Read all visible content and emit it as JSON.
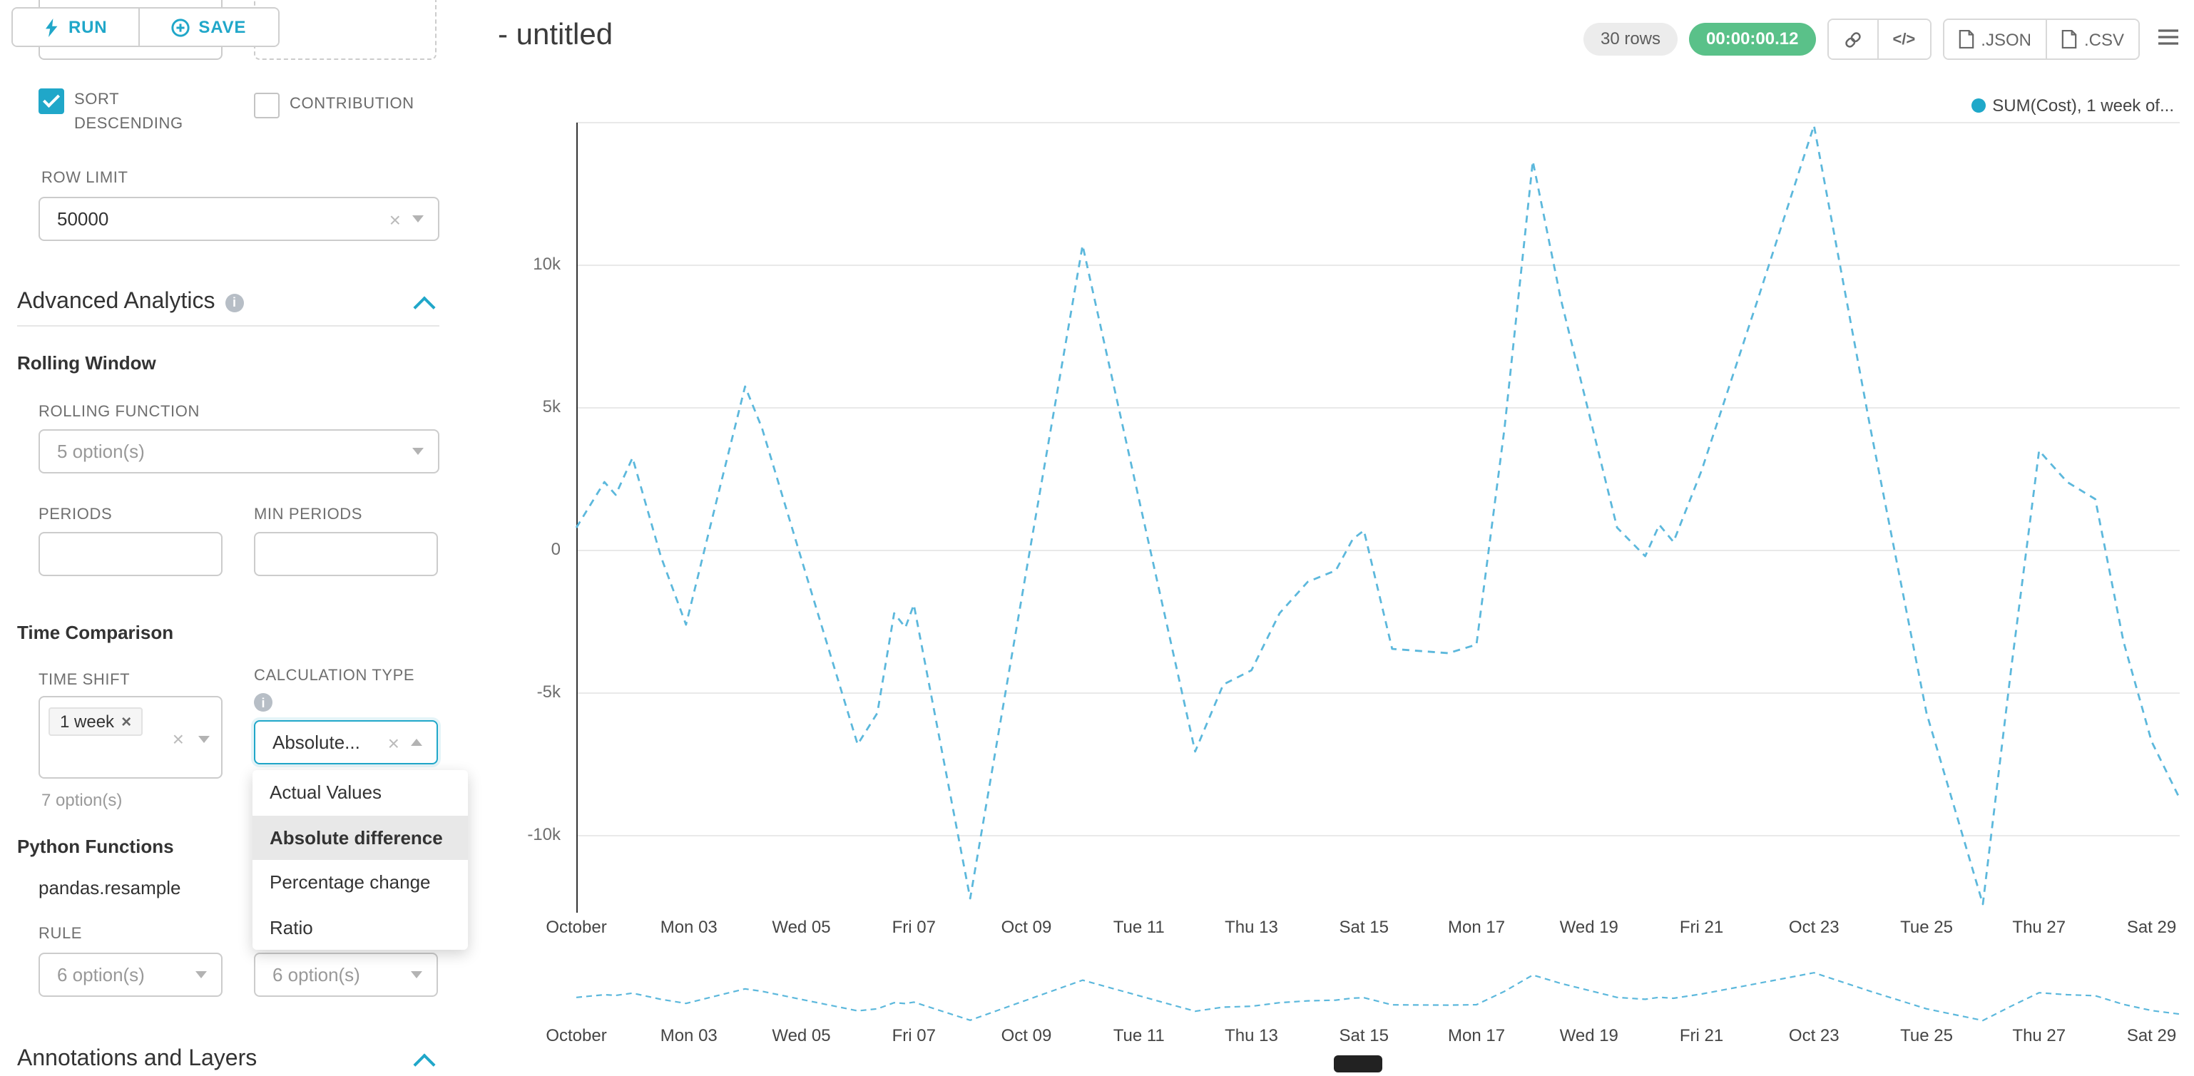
{
  "colors": {
    "accent": "#20a7c9",
    "success_badge": "#5ac189",
    "line": "#5cb8dc",
    "legend_dot": "#1fa8c9"
  },
  "toolbar": {
    "run": "RUN",
    "save": "SAVE"
  },
  "panel": {
    "partial_select_value": "option(s)",
    "checkboxes": [
      {
        "label": "SORT DESCENDING",
        "checked": true
      },
      {
        "label": "CONTRIBUTION",
        "checked": false
      }
    ],
    "row_limit": {
      "label": "ROW LIMIT",
      "value": "50000"
    },
    "advanced_analytics_title": "Advanced Analytics",
    "rolling": {
      "title": "Rolling Window",
      "function_label": "ROLLING FUNCTION",
      "function_placeholder": "5 option(s)",
      "periods_label": "PERIODS",
      "min_periods_label": "MIN PERIODS"
    },
    "time_comparison": {
      "title": "Time Comparison",
      "time_shift_label": "TIME SHIFT",
      "time_shift_tag": "1 week",
      "time_shift_hint": "7 option(s)",
      "calc_label": "CALCULATION TYPE",
      "calc_value": "Absolute...",
      "dropdown_options": [
        "Actual Values",
        "Absolute difference",
        "Percentage change",
        "Ratio"
      ],
      "selected_option": "Absolute difference"
    },
    "python": {
      "title": "Python Functions",
      "module": "pandas.resample",
      "rule_label": "RULE",
      "rule_placeholder_left": "6 option(s)",
      "rule_placeholder_right": "6 option(s)"
    },
    "annotations_title": "Annotations and Layers"
  },
  "header": {
    "title": "- untitled",
    "rows_badge": "30 rows",
    "timer_badge": "00:00:00.12",
    "code_glyph": "</>",
    "json_label": ".JSON",
    "csv_label": ".CSV"
  },
  "legend": {
    "label": "SUM(Cost), 1 week of..."
  },
  "chart_data": {
    "type": "line",
    "title": "",
    "legend": "SUM(Cost), 1 week of...",
    "xlim": [
      0,
      28.5
    ],
    "ylim": [
      -12700,
      15000
    ],
    "grid_values": [
      15000,
      10000,
      5000,
      0,
      -5000,
      -10000
    ],
    "y_ticks": [
      {
        "value": 10000,
        "label": "10k"
      },
      {
        "value": 5000,
        "label": "5k"
      },
      {
        "value": 0,
        "label": "0"
      },
      {
        "value": -5000,
        "label": "-5k"
      },
      {
        "value": -10000,
        "label": "-10k"
      }
    ],
    "x_tick_days": [
      0,
      2,
      4,
      6,
      8,
      10,
      12,
      14,
      16,
      18,
      20,
      22,
      24,
      26,
      28
    ],
    "x_tick_labels": [
      "October",
      "Mon 03",
      "Wed 05",
      "Fri 07",
      "Oct 09",
      "Tue 11",
      "Thu 13",
      "Sat 15",
      "Mon 17",
      "Wed 19",
      "Fri 21",
      "Oct 23",
      "Tue 25",
      "Thu 27",
      "Sat 29"
    ],
    "series": [
      {
        "name": "SUM(Cost), 1 week offset",
        "line_style": "dashed",
        "points": [
          [
            0,
            800
          ],
          [
            0.5,
            2400
          ],
          [
            0.7,
            1950
          ],
          [
            1,
            3250
          ],
          [
            1.5,
            -200
          ],
          [
            1.95,
            -2600
          ],
          [
            2.5,
            1800
          ],
          [
            3,
            5750
          ],
          [
            3.3,
            4300
          ],
          [
            4.1,
            -950
          ],
          [
            5,
            -6800
          ],
          [
            5.35,
            -5700
          ],
          [
            5.65,
            -2200
          ],
          [
            5.85,
            -2700
          ],
          [
            6,
            -1900
          ],
          [
            7,
            -12200
          ],
          [
            8,
            -700
          ],
          [
            9,
            10700
          ],
          [
            10,
            1800
          ],
          [
            11,
            -7050
          ],
          [
            11.5,
            -4700
          ],
          [
            12,
            -4200
          ],
          [
            12.5,
            -2200
          ],
          [
            13,
            -1100
          ],
          [
            13.5,
            -700
          ],
          [
            13.8,
            400
          ],
          [
            14,
            700
          ],
          [
            14.5,
            -3450
          ],
          [
            15.5,
            -3600
          ],
          [
            16,
            -3300
          ],
          [
            16.5,
            4300
          ],
          [
            17,
            13650
          ],
          [
            17.5,
            8800
          ],
          [
            18,
            4800
          ],
          [
            18.5,
            800
          ],
          [
            19,
            -200
          ],
          [
            19.25,
            900
          ],
          [
            19.5,
            300
          ],
          [
            20,
            2800
          ],
          [
            21,
            8800
          ],
          [
            22,
            14900
          ],
          [
            23,
            4300
          ],
          [
            24,
            -5700
          ],
          [
            25,
            -12400
          ],
          [
            25.5,
            -4200
          ],
          [
            26,
            3500
          ],
          [
            26.5,
            2400
          ],
          [
            27,
            1800
          ],
          [
            27.5,
            -3200
          ],
          [
            28,
            -6700
          ],
          [
            28.5,
            -8700
          ]
        ]
      }
    ]
  }
}
